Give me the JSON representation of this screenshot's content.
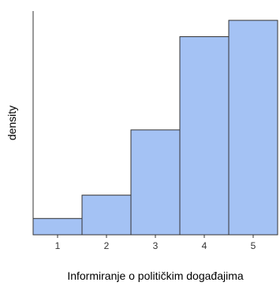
{
  "chart_data": {
    "type": "bar",
    "xlabel": "Informiranje o političkim događajima",
    "ylabel": "density",
    "categories": [
      "1",
      "2",
      "3",
      "4",
      "5"
    ],
    "values": [
      0.035,
      0.085,
      0.225,
      0.425,
      0.46
    ],
    "xlim": [
      0.5,
      5.5
    ],
    "ylim": [
      0,
      0.48
    ],
    "y_tick_labels_shown": false,
    "grid": false,
    "colors": {
      "bar_fill": "#a4c2f4",
      "bar_stroke": "#333333",
      "axis": "#333333"
    }
  }
}
